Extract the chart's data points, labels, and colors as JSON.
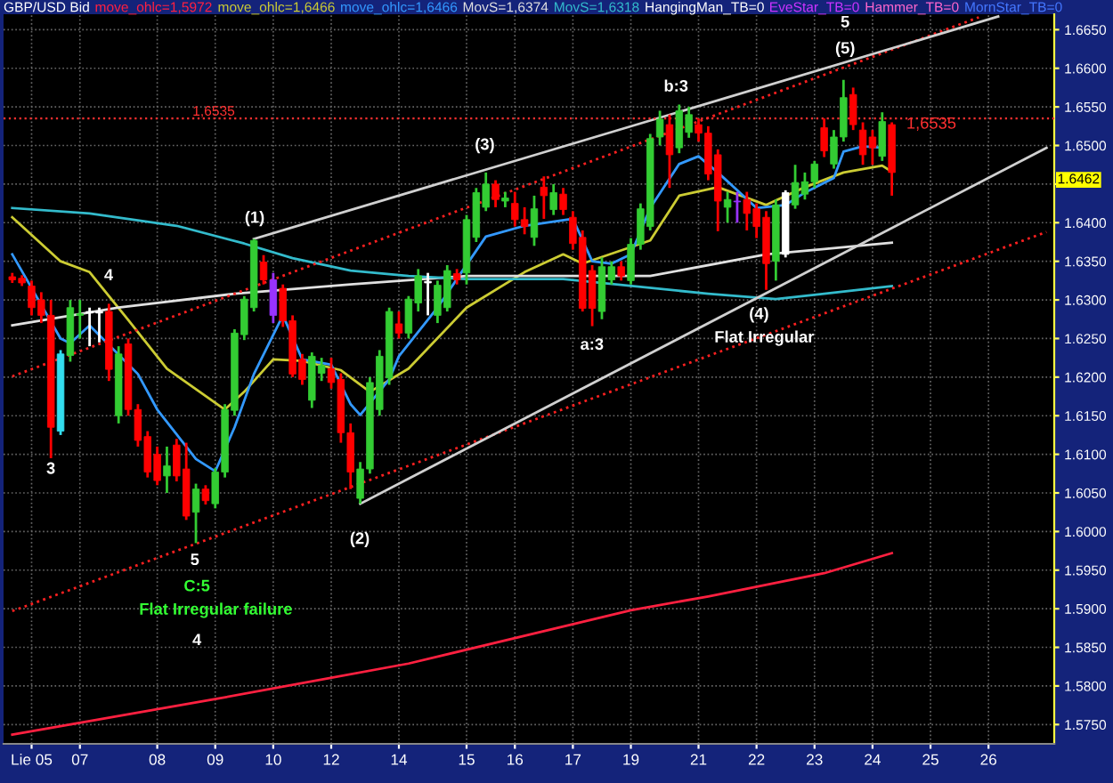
{
  "chart_data": {
    "type": "candlestick",
    "title": "GBP/USD Bid",
    "categories": [
      null,
      null,
      "Lie 05",
      null,
      null,
      null,
      null,
      "07",
      null,
      null,
      null,
      null,
      null,
      null,
      null,
      "08",
      null,
      null,
      null,
      null,
      null,
      "09",
      null,
      null,
      null,
      null,
      null,
      "10",
      null,
      null,
      null,
      null,
      null,
      "12",
      null,
      null,
      null,
      null,
      null,
      null,
      "14",
      null,
      null,
      null,
      null,
      null,
      null,
      "15",
      null,
      null,
      null,
      null,
      "16",
      null,
      null,
      null,
      null,
      null,
      "17",
      null,
      null,
      null,
      null,
      null,
      "19",
      null,
      null,
      null,
      null,
      null,
      null,
      "21",
      null,
      null,
      null,
      null,
      null,
      "22",
      null,
      null,
      null,
      null,
      null,
      "23",
      null,
      null,
      null,
      null,
      null,
      "24",
      null,
      null,
      null,
      null,
      null,
      "25",
      null,
      null,
      null,
      null,
      null,
      "26",
      null,
      null,
      null,
      null,
      null,
      null
    ],
    "ohlc": [
      [
        1.633,
        1.6335,
        1.6322,
        1.6326
      ],
      [
        1.6328,
        1.6332,
        1.6318,
        1.6322
      ],
      [
        1.6318,
        1.6325,
        1.628,
        1.629
      ],
      [
        1.63,
        1.631,
        1.627,
        1.628
      ],
      [
        1.628,
        1.63,
        1.6095,
        1.6135
      ],
      [
        1.613,
        1.6235,
        1.6125,
        1.623
      ],
      [
        1.6228,
        1.63,
        1.622,
        1.629
      ],
      [
        1.628,
        1.63,
        1.625,
        1.6282
      ],
      [
        1.6283,
        1.629,
        1.624,
        1.6285
      ],
      [
        1.6285,
        1.629,
        1.6245,
        1.6283
      ],
      [
        1.6285,
        1.6295,
        1.6195,
        1.621
      ],
      [
        1.615,
        1.624,
        1.614,
        1.623
      ],
      [
        1.6243,
        1.625,
        1.615,
        1.6158
      ],
      [
        1.6158,
        1.6165,
        1.611,
        1.6118
      ],
      [
        1.6123,
        1.613,
        1.607,
        1.6077
      ],
      [
        1.61,
        1.611,
        1.606,
        1.6066
      ],
      [
        1.6072,
        1.611,
        1.605,
        1.6085
      ],
      [
        1.6112,
        1.612,
        1.6065,
        1.6072
      ],
      [
        1.6081,
        1.6115,
        1.6015,
        1.602
      ],
      [
        1.6025,
        1.6062,
        1.5985,
        1.6055
      ],
      [
        1.6055,
        1.606,
        1.6035,
        1.604
      ],
      [
        1.6036,
        1.6082,
        1.603,
        1.6077
      ],
      [
        1.6077,
        1.6165,
        1.607,
        1.6158
      ],
      [
        1.6157,
        1.6262,
        1.615,
        1.6257
      ],
      [
        1.6255,
        1.6305,
        1.6248,
        1.6301
      ],
      [
        1.629,
        1.6379,
        1.6285,
        1.6377
      ],
      [
        1.6349,
        1.6358,
        1.632,
        1.6326
      ],
      [
        1.6326,
        1.6335,
        1.627,
        1.628
      ],
      [
        1.6315,
        1.632,
        1.6265,
        1.6273
      ],
      [
        1.6273,
        1.628,
        1.62,
        1.6204
      ],
      [
        1.6223,
        1.623,
        1.619,
        1.6197
      ],
      [
        1.617,
        1.6232,
        1.616,
        1.6227
      ],
      [
        1.6205,
        1.6225,
        1.6195,
        1.6215
      ],
      [
        1.6211,
        1.6225,
        1.6185,
        1.6193
      ],
      [
        1.6197,
        1.6205,
        1.6115,
        1.6128
      ],
      [
        1.6128,
        1.614,
        1.6055,
        1.6077
      ],
      [
        1.6043,
        1.609,
        1.6036,
        1.6081
      ],
      [
        1.6081,
        1.62,
        1.6075,
        1.6193
      ],
      [
        1.6158,
        1.6235,
        1.615,
        1.6227
      ],
      [
        1.6199,
        1.629,
        1.619,
        1.6285
      ],
      [
        1.6269,
        1.6285,
        1.625,
        1.6257
      ],
      [
        1.6257,
        1.6305,
        1.625,
        1.6301
      ],
      [
        1.6296,
        1.634,
        1.6285,
        1.6331
      ],
      [
        1.6322,
        1.6335,
        1.628,
        1.6324
      ],
      [
        1.628,
        1.6325,
        1.627,
        1.6319
      ],
      [
        1.629,
        1.6345,
        1.6285,
        1.6338
      ],
      [
        1.6334,
        1.634,
        1.632,
        1.6326
      ],
      [
        1.6335,
        1.641,
        1.632,
        1.6404
      ],
      [
        1.6381,
        1.6445,
        1.6375,
        1.6439
      ],
      [
        1.642,
        1.6465,
        1.6415,
        1.645
      ],
      [
        1.645,
        1.6455,
        1.642,
        1.643
      ],
      [
        1.6428,
        1.644,
        1.642,
        1.6432
      ],
      [
        1.6425,
        1.644,
        1.6395,
        1.6404
      ],
      [
        1.6404,
        1.642,
        1.6385,
        1.6395
      ],
      [
        1.6381,
        1.6435,
        1.637,
        1.6418
      ],
      [
        1.6446,
        1.646,
        1.6405,
        1.6435
      ],
      [
        1.6417,
        1.645,
        1.641,
        1.6439
      ],
      [
        1.6437,
        1.6445,
        1.641,
        1.6417
      ],
      [
        1.6407,
        1.6415,
        1.6365,
        1.6373
      ],
      [
        1.6381,
        1.639,
        1.6285,
        1.6289
      ],
      [
        1.6338,
        1.6345,
        1.6266,
        1.6289
      ],
      [
        1.6285,
        1.6355,
        1.6275,
        1.6343
      ],
      [
        1.6326,
        1.635,
        1.632,
        1.6343
      ],
      [
        1.6343,
        1.635,
        1.6325,
        1.6331
      ],
      [
        1.6325,
        1.638,
        1.632,
        1.6372
      ],
      [
        1.6372,
        1.6425,
        1.6365,
        1.6418
      ],
      [
        1.6395,
        1.6515,
        1.639,
        1.6509
      ],
      [
        1.6511,
        1.6545,
        1.65,
        1.6534
      ],
      [
        1.6527,
        1.654,
        1.6445,
        1.6488
      ],
      [
        1.6497,
        1.6553,
        1.649,
        1.6545
      ],
      [
        1.6517,
        1.655,
        1.651,
        1.654
      ],
      [
        1.6527,
        1.6535,
        1.6505,
        1.6516
      ],
      [
        1.6516,
        1.6525,
        1.6455,
        1.6463
      ],
      [
        1.6488,
        1.6495,
        1.6389,
        1.6428
      ],
      [
        1.642,
        1.644,
        1.64,
        1.643
      ],
      [
        1.6428,
        1.644,
        1.64,
        1.6427
      ],
      [
        1.643,
        1.644,
        1.639,
        1.6412
      ],
      [
        1.6418,
        1.6425,
        1.638,
        1.6395
      ],
      [
        1.6407,
        1.6415,
        1.6313,
        1.6347
      ],
      [
        1.635,
        1.643,
        1.6325,
        1.6423
      ],
      [
        1.6359,
        1.6442,
        1.6355,
        1.6439
      ],
      [
        1.6423,
        1.6475,
        1.6418,
        1.6452
      ],
      [
        1.6437,
        1.6465,
        1.643,
        1.6453
      ],
      [
        1.6453,
        1.648,
        1.6445,
        1.6476
      ],
      [
        1.6523,
        1.6535,
        1.6485,
        1.6493
      ],
      [
        1.6476,
        1.652,
        1.647,
        1.6511
      ],
      [
        1.6511,
        1.6585,
        1.6505,
        1.6562
      ],
      [
        1.6566,
        1.6575,
        1.652,
        1.6527
      ],
      [
        1.652,
        1.653,
        1.6475,
        1.6488
      ],
      [
        1.6511,
        1.652,
        1.6475,
        1.6497
      ],
      [
        1.6486,
        1.6543,
        1.648,
        1.6531
      ],
      [
        1.6527,
        1.653,
        1.6435,
        1.6465
      ],
      null,
      null,
      null,
      null,
      null,
      null,
      null,
      null,
      null,
      null,
      null,
      null,
      null,
      null,
      null,
      null
    ],
    "colors": [
      "#ff0000",
      "#ff0000",
      "#ff0000",
      "#ff0000",
      "#ff0000",
      "#33ddee",
      "#33cc33",
      "#33cc33",
      "#ffffff",
      "#ffffff",
      "#ff0000",
      "#33cc33",
      "#ff0000",
      "#ff0000",
      "#ff0000",
      "#ff0000",
      "#33cc33",
      "#ff0000",
      "#ff0000",
      "#33cc33",
      "#ff0000",
      "#33cc33",
      "#33cc33",
      "#33cc33",
      "#33cc33",
      "#33cc33",
      "#ff0000",
      "#9933ff",
      "#ff0000",
      "#ff0000",
      "#ff0000",
      "#33cc33",
      "#33cc33",
      "#ff0000",
      "#ff0000",
      "#ff0000",
      "#33cc33",
      "#33cc33",
      "#33cc33",
      "#33cc33",
      "#ff0000",
      "#33cc33",
      "#33cc33",
      "#ffffff",
      "#33cc33",
      "#33cc33",
      "#ff0000",
      "#33cc33",
      "#33cc33",
      "#33cc33",
      "#ff0000",
      "#33cc33",
      "#ff0000",
      "#ff0000",
      "#33cc33",
      "#ff0000",
      "#33cc33",
      "#ff0000",
      "#ff0000",
      "#ff0000",
      "#ff0000",
      "#33cc33",
      "#33cc33",
      "#ff0000",
      "#33cc33",
      "#33cc33",
      "#33cc33",
      "#33cc33",
      "#ff0000",
      "#33cc33",
      "#33cc33",
      "#ff0000",
      "#ff0000",
      "#ff0000",
      "#33cc33",
      "#9933ff",
      "#ff0000",
      "#ff0000",
      "#ff0000",
      "#33cc33",
      "#ffffff",
      "#33cc33",
      "#33cc33",
      "#33cc33",
      "#ff0000",
      "#33cc33",
      "#33cc33",
      "#ff0000",
      "#ff0000",
      "#ff0000",
      "#33cc33",
      "#ff0000",
      null,
      null,
      null,
      null,
      null,
      null,
      null,
      null,
      null,
      null,
      null,
      null,
      null,
      null,
      null,
      null
    ],
    "series": [
      {
        "type": "line",
        "name": "move_ohlc=1,5972",
        "color": "#ff2040",
        "values": [
          1.5737,
          null,
          null,
          null,
          null,
          null,
          null,
          null,
          null,
          null,
          null,
          null,
          null,
          null,
          null,
          null,
          null,
          null,
          null,
          null,
          null,
          1.5783,
          null,
          null,
          null,
          null,
          null,
          null,
          null,
          null,
          null,
          null,
          null,
          null,
          null,
          null,
          null,
          null,
          null,
          null,
          null,
          1.5829,
          null,
          null,
          null,
          null,
          null,
          null,
          null,
          null,
          null,
          null,
          null,
          null,
          null,
          null,
          null,
          1.5877,
          null,
          null,
          null,
          null,
          null,
          null,
          1.5898,
          null,
          null,
          null,
          null,
          null,
          null,
          null,
          1.5916,
          null,
          null,
          null,
          null,
          null,
          null,
          null,
          null,
          null,
          null,
          null,
          1.5946,
          null,
          null,
          null,
          null,
          null,
          null,
          1.5972,
          null,
          null,
          null,
          null,
          null,
          null,
          null,
          null,
          null,
          null,
          null,
          null,
          null,
          null,
          null,
          null
        ]
      },
      {
        "type": "line",
        "name": "move_ohlc=1,6466",
        "color": "#cccc33",
        "values": [
          1.6407,
          null,
          null,
          null,
          null,
          1.635,
          null,
          null,
          1.6336,
          null,
          null,
          null,
          1.6274,
          null,
          null,
          null,
          1.6211,
          null,
          null,
          null,
          null,
          null,
          1.6158,
          null,
          1.6181,
          null,
          null,
          1.6223,
          null,
          null,
          1.6221,
          null,
          null,
          null,
          1.6209,
          null,
          null,
          1.6181,
          null,
          null,
          null,
          1.6211,
          null,
          null,
          null,
          null,
          null,
          1.629,
          null,
          null,
          null,
          null,
          null,
          1.6336,
          null,
          null,
          null,
          1.6359,
          null,
          1.6347,
          null,
          null,
          null,
          null,
          null,
          null,
          1.6377,
          null,
          null,
          1.6435,
          null,
          null,
          null,
          1.6446,
          null,
          null,
          null,
          null,
          1.6423,
          null,
          null,
          null,
          1.6446,
          null,
          null,
          null,
          1.6465,
          null,
          null,
          null,
          1.6474,
          1.6466,
          null,
          null,
          null,
          null,
          null,
          null,
          null,
          null,
          null,
          null,
          null,
          null,
          null,
          null,
          null,
          null
        ]
      },
      {
        "type": "line",
        "name": "move_ohlc=1,6466",
        "color": "#3399ff",
        "values": [
          1.6359,
          null,
          null,
          null,
          null,
          1.625,
          1.6244,
          null,
          1.6267,
          null,
          null,
          null,
          null,
          1.6204,
          null,
          1.6158,
          null,
          null,
          null,
          1.6094,
          null,
          1.6078,
          null,
          1.6135,
          null,
          1.6204,
          null,
          null,
          1.628,
          null,
          1.6223,
          null,
          null,
          1.6216,
          null,
          1.6165,
          1.6151,
          null,
          null,
          1.6197,
          1.6227,
          null,
          null,
          null,
          1.629,
          null,
          1.6327,
          null,
          null,
          1.6382,
          null,
          null,
          null,
          1.6396,
          null,
          null,
          null,
          null,
          1.6405,
          null,
          1.635,
          null,
          1.6347,
          null,
          1.6359,
          null,
          1.6419,
          null,
          null,
          1.6476,
          null,
          1.6486,
          null,
          1.6465,
          null,
          1.6442,
          null,
          1.6419,
          null,
          null,
          1.6423,
          null,
          1.6439,
          null,
          null,
          1.6458,
          1.6492,
          null,
          1.6499,
          null,
          1.6497,
          null,
          null,
          null,
          null,
          null,
          null,
          null,
          null,
          null,
          null,
          null,
          null,
          null,
          null,
          null,
          null,
          null
        ]
      },
      {
        "type": "line",
        "name": "MovS=1,6374",
        "color": "#e0e0e0",
        "values": [
          1.6267,
          null,
          null,
          null,
          null,
          null,
          null,
          null,
          null,
          null,
          null,
          1.629,
          null,
          null,
          null,
          null,
          null,
          null,
          null,
          null,
          null,
          null,
          null,
          1.6308,
          null,
          null,
          null,
          null,
          null,
          null,
          null,
          null,
          null,
          null,
          null,
          1.632,
          null,
          null,
          null,
          null,
          null,
          null,
          null,
          null,
          null,
          null,
          null,
          1.6331,
          null,
          null,
          null,
          null,
          null,
          null,
          null,
          null,
          null,
          null,
          null,
          null,
          null,
          null,
          null,
          null,
          null,
          null,
          1.6331,
          null,
          null,
          null,
          null,
          null,
          null,
          null,
          null,
          null,
          null,
          null,
          1.6359,
          null,
          null,
          null,
          null,
          null,
          1.6366,
          null,
          null,
          null,
          null,
          null,
          null,
          1.6374,
          null,
          null,
          null,
          null,
          null,
          null,
          null,
          null,
          null,
          null,
          null,
          null,
          null,
          null,
          null,
          null
        ]
      },
      {
        "type": "line",
        "name": "MovS=1,6318",
        "color": "#33bbcc",
        "values": [
          1.6419,
          null,
          null,
          null,
          null,
          null,
          null,
          null,
          1.6412,
          null,
          null,
          null,
          null,
          null,
          null,
          null,
          null,
          1.6396,
          null,
          null,
          null,
          null,
          null,
          null,
          1.6373,
          null,
          null,
          null,
          null,
          1.6354,
          null,
          null,
          null,
          null,
          null,
          1.6338,
          null,
          null,
          null,
          null,
          null,
          1.6331,
          null,
          null,
          null,
          null,
          null,
          1.6327,
          null,
          null,
          null,
          null,
          null,
          null,
          null,
          null,
          null,
          1.6327,
          null,
          null,
          null,
          null,
          null,
          null,
          null,
          null,
          null,
          null,
          null,
          null,
          null,
          null,
          1.6308,
          null,
          null,
          null,
          null,
          null,
          null,
          1.6301,
          null,
          null,
          null,
          null,
          1.6308,
          null,
          null,
          null,
          null,
          null,
          null,
          1.6318,
          null,
          null,
          null,
          null,
          null,
          null,
          null,
          null,
          null,
          null,
          null,
          null,
          null,
          null,
          null,
          null
        ]
      },
      {
        "type": "line",
        "color": "#ff2020",
        "line_style": "dotted",
        "values": [
          1.6201,
          null,
          null,
          null,
          null,
          null,
          null,
          null,
          null,
          null,
          null,
          null,
          null,
          null,
          null,
          null,
          null,
          null,
          null,
          null,
          null,
          null,
          null,
          null,
          null,
          null,
          null,
          null,
          null,
          null,
          null,
          null,
          null,
          null,
          null,
          null,
          null,
          null,
          null,
          null,
          null,
          null,
          null,
          null,
          null,
          null,
          null,
          null,
          null,
          null,
          null,
          null,
          null,
          null,
          null,
          null,
          null,
          null,
          null,
          null,
          null,
          null,
          null,
          null,
          null,
          null,
          null,
          null,
          null,
          null,
          null,
          null,
          null,
          null,
          null,
          null,
          null,
          null,
          null,
          null,
          null,
          null,
          null,
          null,
          null,
          null,
          null,
          null,
          null,
          null,
          null,
          null,
          null,
          null,
          null,
          null,
          null,
          null,
          null,
          null,
          1.6666,
          null,
          null,
          null,
          null,
          null,
          null,
          null
        ]
      },
      {
        "type": "line",
        "color": "#ff2020",
        "line_style": "dotted",
        "values": [
          1.5897,
          null,
          null,
          null,
          null,
          null,
          null,
          null,
          null,
          null,
          null,
          null,
          null,
          null,
          null,
          null,
          null,
          null,
          null,
          null,
          null,
          null,
          null,
          null,
          null,
          null,
          null,
          null,
          null,
          null,
          null,
          null,
          null,
          null,
          null,
          null,
          null,
          null,
          null,
          null,
          null,
          null,
          null,
          null,
          null,
          null,
          null,
          null,
          null,
          null,
          null,
          null,
          null,
          null,
          null,
          null,
          null,
          null,
          null,
          null,
          null,
          null,
          null,
          null,
          null,
          null,
          null,
          null,
          null,
          null,
          null,
          null,
          null,
          null,
          null,
          null,
          null,
          null,
          null,
          null,
          null,
          null,
          null,
          null,
          null,
          null,
          null,
          null,
          null,
          null,
          null,
          null,
          null,
          null,
          null,
          null,
          null,
          null,
          null,
          null,
          null,
          null,
          null,
          null,
          null,
          null,
          null,
          1.6388
        ]
      },
      {
        "type": "line",
        "color": "#d0d0d0",
        "values": [
          null,
          null,
          null,
          null,
          null,
          null,
          null,
          null,
          null,
          null,
          null,
          null,
          null,
          null,
          null,
          null,
          null,
          null,
          null,
          null,
          null,
          null,
          null,
          null,
          null,
          1.6379,
          null,
          null,
          null,
          null,
          null,
          null,
          null,
          null,
          null,
          null,
          null,
          null,
          null,
          null,
          null,
          null,
          null,
          null,
          null,
          null,
          null,
          null,
          null,
          null,
          null,
          null,
          null,
          null,
          null,
          null,
          null,
          null,
          null,
          null,
          null,
          null,
          null,
          null,
          null,
          null,
          null,
          null,
          null,
          null,
          null,
          null,
          null,
          null,
          null,
          null,
          null,
          null,
          null,
          null,
          null,
          null,
          null,
          null,
          null,
          null,
          null,
          null,
          null,
          null,
          null,
          null,
          null,
          null,
          null,
          null,
          null,
          null,
          null,
          null,
          null,
          null,
          1.6667,
          null,
          null,
          null,
          null,
          null
        ]
      },
      {
        "type": "line",
        "color": "#d0d0d0",
        "values": [
          null,
          null,
          null,
          null,
          null,
          null,
          null,
          null,
          null,
          null,
          null,
          null,
          null,
          null,
          null,
          null,
          null,
          null,
          null,
          null,
          null,
          null,
          null,
          null,
          null,
          null,
          null,
          null,
          null,
          null,
          null,
          null,
          null,
          null,
          null,
          null,
          1.6036,
          null,
          null,
          null,
          null,
          null,
          null,
          null,
          null,
          null,
          null,
          null,
          null,
          null,
          null,
          null,
          null,
          null,
          null,
          null,
          null,
          null,
          null,
          null,
          null,
          null,
          null,
          null,
          null,
          null,
          null,
          null,
          null,
          null,
          null,
          null,
          null,
          null,
          null,
          null,
          null,
          null,
          null,
          null,
          null,
          null,
          null,
          null,
          null,
          null,
          null,
          null,
          null,
          null,
          null,
          null,
          null,
          null,
          null,
          null,
          null,
          null,
          null,
          null,
          null,
          null,
          null,
          null,
          null,
          null,
          null,
          1.6497
        ]
      }
    ],
    "ref_lines": [
      {
        "axis": "y",
        "value": 1.6535,
        "label": "1,6535",
        "color": "#ff3030",
        "line_style": "dotted"
      }
    ],
    "annotations": [
      "HangingMan_TB=0",
      "EveStar_TB=0",
      "Hammer_TB=0",
      "MornStar_TB=0",
      "(1)",
      "(2)",
      "(3)",
      "(4)",
      "(5)",
      "5",
      "b:3",
      "a:3",
      "Flat Irregular",
      "3",
      "4",
      "5",
      "C:5",
      "Flat Irregular failure",
      "4",
      "1,6535",
      "1.6462"
    ],
    "ylim": [
      1.5725,
      1.667
    ],
    "yticks": [
      {
        "value": 1.575,
        "label": "1.5750"
      },
      {
        "value": 1.58,
        "label": "1.5800"
      },
      {
        "value": 1.585,
        "label": "1.5850"
      },
      {
        "value": 1.59,
        "label": "1.5900"
      },
      {
        "value": 1.595,
        "label": "1.5950"
      },
      {
        "value": 1.6,
        "label": "1.6000"
      },
      {
        "value": 1.605,
        "label": "1.6050"
      },
      {
        "value": 1.61,
        "label": "1.6100"
      },
      {
        "value": 1.615,
        "label": "1.6150"
      },
      {
        "value": 1.62,
        "label": "1.6200"
      },
      {
        "value": 1.625,
        "label": "1.6250"
      },
      {
        "value": 1.63,
        "label": "1.6300"
      },
      {
        "value": 1.635,
        "label": "1.6350"
      },
      {
        "value": 1.64,
        "label": "1.6400"
      },
      {
        "value": 1.645,
        "label": null
      },
      {
        "value": 1.65,
        "label": "1.6500"
      },
      {
        "value": 1.655,
        "label": "1.6550"
      },
      {
        "value": 1.66,
        "label": "1.6600"
      },
      {
        "value": 1.665,
        "label": "1.6650"
      }
    ],
    "grid": true,
    "legend": "top"
  }
}
